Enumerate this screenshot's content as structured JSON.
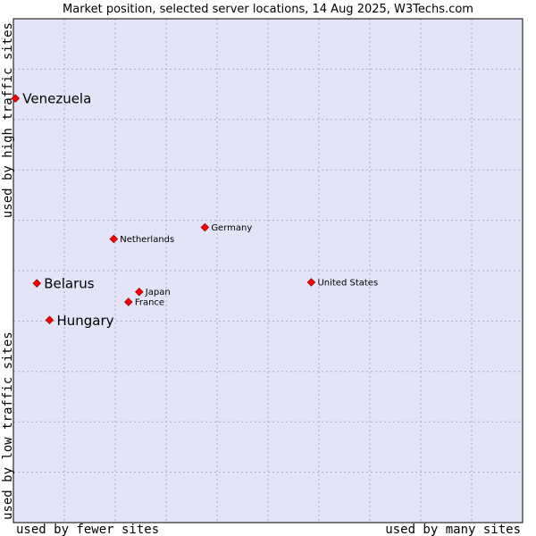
{
  "chart_data": {
    "type": "scatter",
    "title": "Market position, selected server locations, 14 Aug 2025, W3Techs.com",
    "xlabel_left": "used by fewer sites",
    "xlabel_right": "used by many sites",
    "ylabel_bottom": "used by low traffic sites",
    "ylabel_top": "used by high traffic sites",
    "xlim": [
      0,
      100
    ],
    "ylim": [
      0,
      100
    ],
    "grid": true,
    "legend": "none",
    "colors": {
      "background": "#e4e4f8",
      "grid": "#a9a9c6",
      "border": "#000000",
      "point": "#ff0000",
      "point_outline": "#990000"
    },
    "points": [
      {
        "label": "Venezuela",
        "x": 0.4,
        "y": 84.2,
        "emphasis": true
      },
      {
        "label": "Germany",
        "x": 37.6,
        "y": 58.6,
        "emphasis": false
      },
      {
        "label": "Netherlands",
        "x": 19.7,
        "y": 56.3,
        "emphasis": false
      },
      {
        "label": "Belarus",
        "x": 4.6,
        "y": 47.5,
        "emphasis": true
      },
      {
        "label": "United States",
        "x": 58.5,
        "y": 47.7,
        "emphasis": false
      },
      {
        "label": "Japan",
        "x": 24.7,
        "y": 45.8,
        "emphasis": false
      },
      {
        "label": "France",
        "x": 22.6,
        "y": 43.8,
        "emphasis": false
      },
      {
        "label": "Hungary",
        "x": 7.1,
        "y": 40.2,
        "emphasis": true
      }
    ]
  }
}
